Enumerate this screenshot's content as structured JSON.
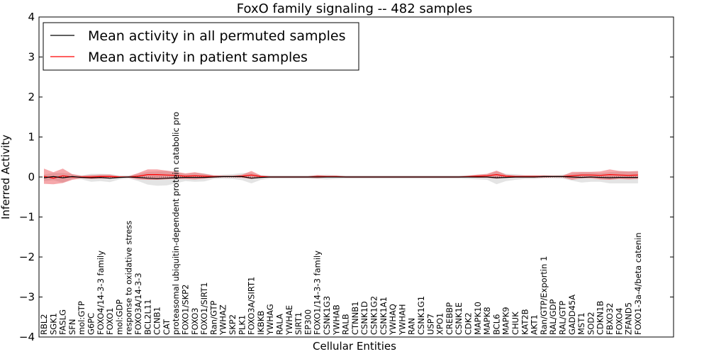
{
  "chart_data": {
    "type": "line",
    "title": "FoxO family signaling -- 482 samples",
    "xlabel": "Cellular Entities",
    "ylabel": "Inferred Activity",
    "ylim": [
      -4,
      4
    ],
    "yticks": [
      -4,
      -3,
      -2,
      -1,
      0,
      1,
      2,
      3,
      4
    ],
    "grid": false,
    "legend_position": "top-left",
    "categories": [
      "RBL2",
      "SGK1",
      "FASLG",
      "SFN",
      "mol:GTP",
      "G6PC",
      "FOXO4/14-3-3 family",
      "FOXO1",
      "mol:GDP",
      "response to oxidative stress",
      "FOXO3A/14-3-3",
      "BCL2L11",
      "CCNB1",
      "CAT",
      "proteasomal ubiquitin-dependent protein catabolic pro",
      "FOXO1/SKP2",
      "FOXO3",
      "FOXO1/SIRT1",
      "Ran/GTP",
      "YWHAZ",
      "SKP2",
      "PLK1",
      "FOXO3A/SIRT1",
      "IKBKB",
      "YWHAG",
      "RALA",
      "YWHAE",
      "SIRT1",
      "EP300",
      "FOXO1/14-3-3 family",
      "CSNK1G3",
      "YWHAB",
      "RALB",
      "CTNNB1",
      "CSNK1D",
      "CSNK1G2",
      "CSNK1A1",
      "YWHAQ",
      "YWHAH",
      "RAN",
      "CSNK1G1",
      "USP7",
      "XPO1",
      "CREBBP",
      "CSNK1E",
      "CDK2",
      "MAPK10",
      "MAPK8",
      "BCL6",
      "MAPK9",
      "CHUK",
      "KAT2B",
      "AKT1",
      "Ran/GTP/Exportin 1",
      "RAL/GDP",
      "RAL/GTP",
      "GADD45A",
      "MST1",
      "SOD2",
      "CDKN1B",
      "FBXO32",
      "FOXO4",
      "ZFAND5",
      "FOXO1-3a-4/beta catenin"
    ],
    "series": [
      {
        "name": "Mean activity in all permuted samples",
        "color": "#000000",
        "values": [
          -0.02,
          0.01,
          -0.02,
          0.01,
          -0.01,
          -0.02,
          -0.01,
          -0.03,
          -0.01,
          0,
          -0.01,
          -0.03,
          -0.04,
          -0.03,
          -0.02,
          -0.01,
          -0.01,
          -0.01,
          0,
          0.01,
          0.01,
          0.01,
          -0.03,
          -0.01,
          0,
          0,
          0,
          0,
          0,
          0,
          0,
          0,
          0,
          0,
          0,
          0,
          0,
          0,
          0,
          0,
          0,
          0,
          0,
          0,
          0,
          0,
          0,
          0,
          -0.02,
          -0.01,
          0,
          0,
          0,
          0.01,
          0.01,
          0.01,
          0,
          -0.01,
          0,
          -0.01,
          -0.02,
          -0.01,
          -0.01,
          -0.01
        ],
        "band": [
          0.08,
          0.09,
          0.12,
          0.06,
          0.05,
          0.1,
          0.09,
          0.1,
          0.05,
          0.04,
          0.09,
          0.16,
          0.18,
          0.18,
          0.14,
          0.09,
          0.11,
          0.1,
          0.05,
          0.05,
          0.06,
          0.09,
          0.13,
          0.06,
          0.04,
          0.04,
          0.04,
          0.04,
          0.04,
          0.05,
          0.06,
          0.05,
          0.04,
          0.04,
          0.04,
          0.04,
          0.04,
          0.04,
          0.04,
          0.04,
          0.04,
          0.04,
          0.04,
          0.04,
          0.04,
          0.05,
          0.06,
          0.07,
          0.16,
          0.09,
          0.07,
          0.05,
          0.05,
          0.04,
          0.04,
          0.05,
          0.09,
          0.13,
          0.12,
          0.11,
          0.14,
          0.15,
          0.15,
          0.15
        ]
      },
      {
        "name": "Mean activity in patient samples",
        "color": "#ff0000",
        "band_color": "#e8262c",
        "values": [
          0.02,
          -0.03,
          0.03,
          0,
          0,
          0,
          0.01,
          0.01,
          0,
          0,
          0.02,
          0.06,
          0.06,
          0.05,
          0.04,
          0.02,
          0.03,
          0.02,
          0.01,
          0.01,
          0.01,
          0.02,
          0.05,
          0.01,
          0,
          0,
          0,
          0,
          0,
          0.01,
          0.01,
          0.01,
          0,
          0,
          0,
          0,
          0,
          0,
          0,
          0,
          0,
          0,
          0,
          0,
          0,
          0.01,
          0.02,
          0.03,
          0.06,
          0.02,
          0.01,
          0.01,
          0.01,
          0.01,
          0.01,
          0.01,
          0.03,
          0.05,
          0.05,
          0.04,
          0.06,
          0.05,
          0.04,
          0.05
        ],
        "band": [
          0.19,
          0.15,
          0.18,
          0.07,
          0.03,
          0.05,
          0.05,
          0.05,
          0.02,
          0.02,
          0.08,
          0.13,
          0.13,
          0.11,
          0.09,
          0.07,
          0.09,
          0.06,
          0.03,
          0.02,
          0.02,
          0.04,
          0.1,
          0.03,
          0.02,
          0.02,
          0.02,
          0.02,
          0.02,
          0.04,
          0.02,
          0.02,
          0.02,
          0.02,
          0.02,
          0.02,
          0.02,
          0.02,
          0.02,
          0.02,
          0.02,
          0.02,
          0.02,
          0.02,
          0.02,
          0.02,
          0.04,
          0.05,
          0.1,
          0.04,
          0.03,
          0.03,
          0.03,
          0.03,
          0.02,
          0.02,
          0.1,
          0.08,
          0.08,
          0.1,
          0.13,
          0.1,
          0.1,
          0.1
        ]
      }
    ]
  }
}
